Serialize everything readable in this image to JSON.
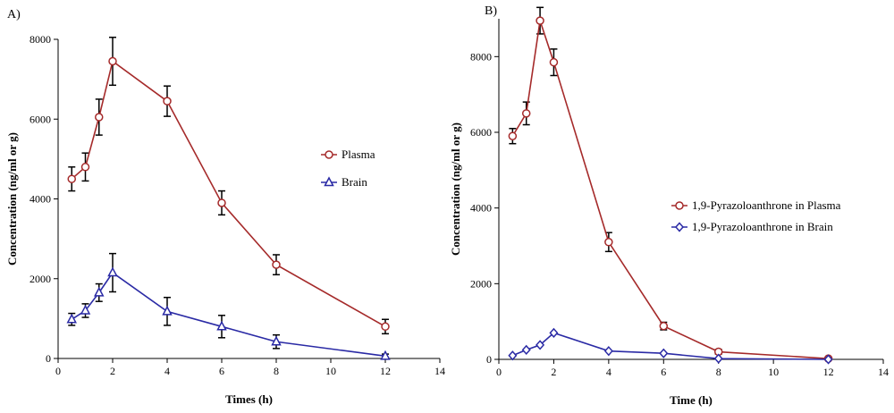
{
  "chart_data": [
    {
      "type": "line",
      "panel_label": "A)",
      "xlabel": "Times (h)",
      "ylabel": "Concentration (ng/ml or g)",
      "xlim": [
        0,
        14
      ],
      "ylim": [
        0,
        8000
      ],
      "xticks": [
        0,
        2,
        4,
        6,
        8,
        10,
        12,
        14
      ],
      "yticks": [
        0,
        2000,
        4000,
        6000,
        8000
      ],
      "legend_position": "right-middle",
      "series": [
        {
          "name": "Plasma",
          "color": "#a52a2a",
          "marker": "circle",
          "x": [
            0.5,
            1,
            1.5,
            2,
            4,
            6,
            8,
            12
          ],
          "y": [
            4500,
            4800,
            6050,
            7450,
            6450,
            3900,
            2350,
            800
          ],
          "err": [
            300,
            350,
            450,
            600,
            380,
            300,
            250,
            180
          ]
        },
        {
          "name": "Brain",
          "color": "#2a2aa5",
          "marker": "triangle",
          "x": [
            0.5,
            1,
            1.5,
            2,
            4,
            6,
            8,
            12
          ],
          "y": [
            980,
            1200,
            1650,
            2150,
            1180,
            800,
            420,
            60
          ],
          "err": [
            150,
            170,
            220,
            480,
            350,
            280,
            170,
            50
          ]
        }
      ]
    },
    {
      "type": "line",
      "panel_label": "B)",
      "xlabel": "Time (h)",
      "ylabel": "Concentration (ng/ml or g)",
      "xlim": [
        0,
        14
      ],
      "ylim": [
        0,
        9000
      ],
      "xticks": [
        0,
        2,
        4,
        6,
        8,
        10,
        12,
        14
      ],
      "yticks": [
        0,
        2000,
        4000,
        6000,
        8000
      ],
      "legend_position": "right-middle",
      "series": [
        {
          "name": "1,9-Pyrazoloanthrone in Plasma",
          "color": "#a52a2a",
          "marker": "circle",
          "x": [
            0.5,
            1,
            1.5,
            2,
            4,
            6,
            8,
            12
          ],
          "y": [
            5900,
            6500,
            8950,
            7850,
            3100,
            880,
            200,
            20
          ],
          "err": [
            200,
            300,
            350,
            350,
            250,
            100,
            60,
            20
          ]
        },
        {
          "name": "1,9-Pyrazoloanthrone in Brain",
          "color": "#2a2aa5",
          "marker": "diamond",
          "x": [
            0.5,
            1,
            1.5,
            2,
            4,
            6,
            8,
            12
          ],
          "y": [
            100,
            250,
            380,
            700,
            220,
            160,
            20,
            0
          ],
          "err": [
            0,
            0,
            0,
            0,
            0,
            0,
            0,
            0
          ]
        }
      ]
    }
  ]
}
